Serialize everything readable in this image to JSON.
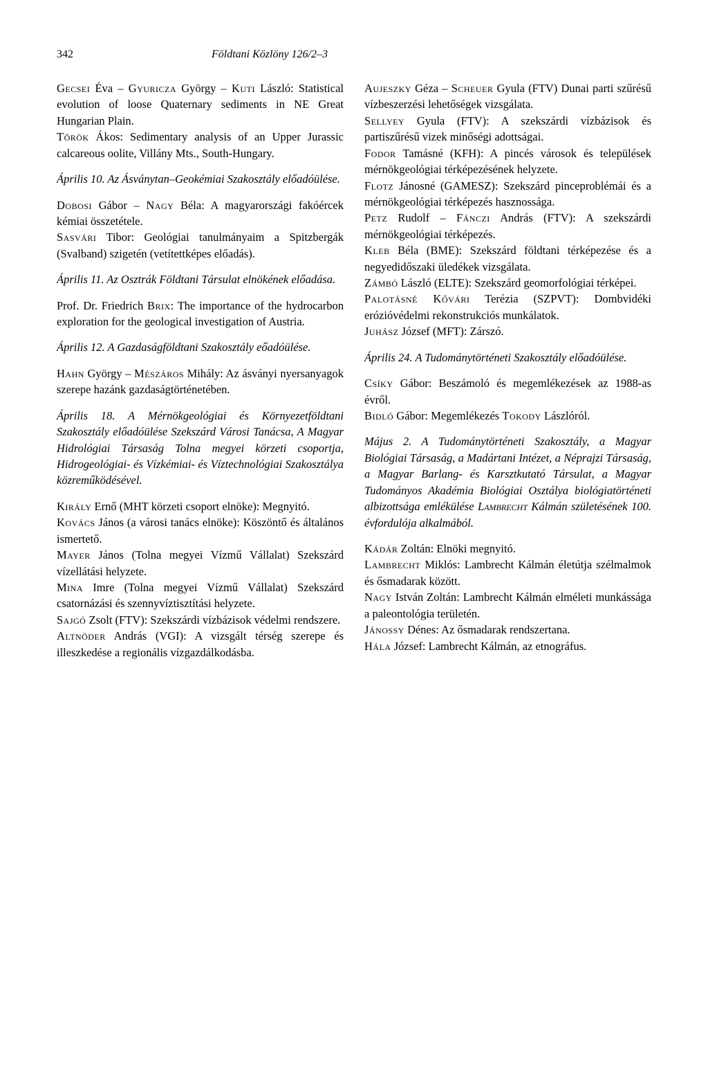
{
  "page_number": "342",
  "journal_title": "Földtani Közlöny 126/2–3",
  "left_column": [
    {
      "type": "entry",
      "html": "<span class='smallcaps'>Gecsei</span> Éva – <span class='smallcaps'>Gyuricza</span> György – <span class='smallcaps'>Kuti</span> László: Statistical evolution of loose Quaternary sediments in NE Great Hungarian Plain."
    },
    {
      "type": "entry gap-after",
      "html": "<span class='smallcaps'>Török</span> Ákos: Sedimentary analysis of an Upper Jurassic calcareous oolite, Villány Mts., South-Hungary."
    },
    {
      "type": "section-heading",
      "html": "Április 10. Az Ásványtan–Geokémiai Szakosztály előadóülése."
    },
    {
      "type": "entry",
      "html": "<span class='smallcaps'>Dobosi</span> Gábor – <span class='smallcaps'>Nagy</span> Béla: A magyarországi fakóércek kémiai összetétele."
    },
    {
      "type": "entry gap-after",
      "html": "<span class='smallcaps'>Sasvári</span> Tibor: Geológiai tanulmányaim a Spitzbergák (Svalband) szigetén (vetítettképes előadás)."
    },
    {
      "type": "section-heading",
      "html": "Április 11. Az Osztrák Földtani Társulat elnökének előadása."
    },
    {
      "type": "entry gap-after",
      "html": "Prof. Dr. Friedrich <span class='smallcaps'>Brix</span>: The importance of the hydrocarbon exploration for the geological investigation of Austria."
    },
    {
      "type": "section-heading",
      "html": "Április 12. A Gazdaságföldtani Szakosztály eőadóülése."
    },
    {
      "type": "entry gap-after",
      "html": "<span class='smallcaps'>Hahn</span> György – <span class='smallcaps'>Mészáros</span> Mihály: Az ásványi nyersanyagok szerepe hazánk gazdaságtörténetében."
    },
    {
      "type": "section-heading",
      "html": "Április 18. A Mérnökgeológiai és Környezetföldtani Szakosztály előadóülése Szekszárd Városi Tanácsa, A Magyar Hidrológiai Társaság Tolna megyei körzeti csoportja, Hidrogeológiai- és Vízkémiai- és Víztechnológiai Szakosztálya közreműködésével."
    },
    {
      "type": "entry",
      "html": "<span class='smallcaps'>Király</span> Ernő (MHT körzeti csoport elnöke): Megnyitó."
    },
    {
      "type": "entry",
      "html": "<span class='smallcaps'>Kovács</span> János (a városi tanács elnöke): Köszöntő és általános ismertető."
    },
    {
      "type": "entry",
      "html": "<span class='smallcaps'>Mayer</span> János (Tolna megyei Vízmű Vállalat) Szekszárd vízellátási helyzete."
    },
    {
      "type": "entry",
      "html": "<span class='smallcaps'>Mina</span> Imre (Tolna megyei Vízmű Vállalat) Szekszárd csatornázási és szennyvíztisztítási helyzete."
    },
    {
      "type": "entry",
      "html": "<span class='smallcaps'>Sajgó</span> Zsolt (FTV): Szekszárdi vízbázisok védelmi rendszere."
    },
    {
      "type": "entry",
      "html": "<span class='smallcaps'>Altnöder</span> András (VGI): A vizsgált térség szerepe és illeszkedése a regionális vízgazdálkodásba."
    }
  ],
  "right_column": [
    {
      "type": "entry",
      "html": "<span class='smallcaps'>Aujeszky</span> Géza – <span class='smallcaps'>Scheuer</span> Gyula (FTV) Dunai parti szűrésű vízbeszerzési lehetőségek vizsgálata."
    },
    {
      "type": "entry",
      "html": "<span class='smallcaps'>Sellyey</span> Gyula (FTV): A szekszárdi vízbázisok és partiszűrésű vizek minőségi adottságai."
    },
    {
      "type": "entry",
      "html": "<span class='smallcaps'>Fodor</span> Tamásné (KFH): A pincés városok és települések mérnökgeológiai térképezésének helyzete."
    },
    {
      "type": "entry",
      "html": "<span class='smallcaps'>Flotz</span> Jánosné (GAMESZ): Szekszárd pinceproblémái és a mérnökgeológiai térképezés hasznossága."
    },
    {
      "type": "entry",
      "html": "<span class='smallcaps'>Petz</span> Rudolf – <span class='smallcaps'>Fánczi</span> András (FTV): A szekszárdi mérnökgeológiai térképezés."
    },
    {
      "type": "entry",
      "html": "<span class='smallcaps'>Kleb</span> Béla (BME): Szekszárd földtani térképezése és a negyedidőszaki üledékek vizsgálata."
    },
    {
      "type": "entry",
      "html": "<span class='smallcaps'>Zámbó</span> László (ELTE): Szekszárd geomorfológiai térképei."
    },
    {
      "type": "entry",
      "html": "<span class='smallcaps'>Palotásné Kővári</span> Terézia (SZPVT): Dombvidéki erózióvédelmi rekonstrukciós munkálatok."
    },
    {
      "type": "entry gap-after",
      "html": "<span class='smallcaps'>Juhász</span> József (MFT): Zárszó."
    },
    {
      "type": "section-heading",
      "html": "Április 24. A Tudománytörténeti Szakosztály előadóülése."
    },
    {
      "type": "entry",
      "html": "<span class='smallcaps'>Csíky</span> Gábor: Beszámoló és megemlékezések az 1988-as évről."
    },
    {
      "type": "entry gap-after",
      "html": "<span class='smallcaps'>Bidló</span> Gábor: Megemlékezés <span class='smallcaps'>Tokody</span> Lászlóról."
    },
    {
      "type": "section-heading",
      "html": "Május 2. A Tudománytörténeti Szakosztály, a Magyar Biológiai Társaság, a Madártani Intézet, a Néprajzi Társaság, a Magyar Barlang- és Karsztkutató Társulat, a Magyar Tudományos Akadémia Biológiai Osztálya biológiatörténeti albizottsága emlékülése <span style='font-style:italic'>L<span style='font-variant:small-caps'>ambrecht</span></span> Kálmán születésének 100. évfordulója alkalmából."
    },
    {
      "type": "entry",
      "html": "<span class='smallcaps'>Kádár</span> Zoltán: Elnöki megnyitó."
    },
    {
      "type": "entry",
      "html": "<span class='smallcaps'>Lambrecht</span> Miklós: Lambrecht Kálmán életútja szélmalmok és ősmadarak között."
    },
    {
      "type": "entry",
      "html": "<span class='smallcaps'>Nagy</span> István Zoltán: Lambrecht Kálmán elméleti munkássága a paleontológia területén."
    },
    {
      "type": "entry",
      "html": "<span class='smallcaps'>Jánossy</span> Dénes: Az ősmadarak rendszertana."
    },
    {
      "type": "entry",
      "html": "<span class='smallcaps'>Hála</span> József: Lambrecht Kálmán, az etnográfus."
    }
  ]
}
